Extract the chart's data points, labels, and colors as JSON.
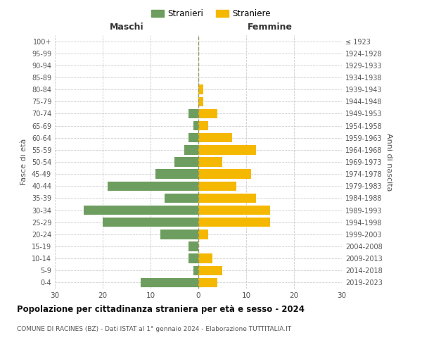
{
  "age_groups": [
    "0-4",
    "5-9",
    "10-14",
    "15-19",
    "20-24",
    "25-29",
    "30-34",
    "35-39",
    "40-44",
    "45-49",
    "50-54",
    "55-59",
    "60-64",
    "65-69",
    "70-74",
    "75-79",
    "80-84",
    "85-89",
    "90-94",
    "95-99",
    "100+"
  ],
  "birth_years": [
    "2019-2023",
    "2014-2018",
    "2009-2013",
    "2004-2008",
    "1999-2003",
    "1994-1998",
    "1989-1993",
    "1984-1988",
    "1979-1983",
    "1974-1978",
    "1969-1973",
    "1964-1968",
    "1959-1963",
    "1954-1958",
    "1949-1953",
    "1944-1948",
    "1939-1943",
    "1934-1938",
    "1929-1933",
    "1924-1928",
    "≤ 1923"
  ],
  "males": [
    12,
    1,
    2,
    2,
    8,
    20,
    24,
    7,
    19,
    9,
    5,
    3,
    2,
    1,
    2,
    0,
    0,
    0,
    0,
    0,
    0
  ],
  "females": [
    4,
    5,
    3,
    0,
    2,
    15,
    15,
    12,
    8,
    11,
    5,
    12,
    7,
    2,
    4,
    1,
    1,
    0,
    0,
    0,
    0
  ],
  "male_color": "#6e9e5f",
  "female_color": "#f5b800",
  "grid_color": "#cccccc",
  "axis_label_color": "#555555",
  "title": "Popolazione per cittadinanza straniera per età e sesso - 2024",
  "subtitle": "COMUNE DI RACINES (BZ) - Dati ISTAT al 1° gennaio 2024 - Elaborazione TUTTITALIA.IT",
  "left_header": "Maschi",
  "right_header": "Femmine",
  "left_ylabel": "Fasce di età",
  "right_ylabel": "Anni di nascita",
  "legend_stranieri": "Stranieri",
  "legend_straniere": "Straniere",
  "xlim": 30,
  "bg_color": "#ffffff"
}
